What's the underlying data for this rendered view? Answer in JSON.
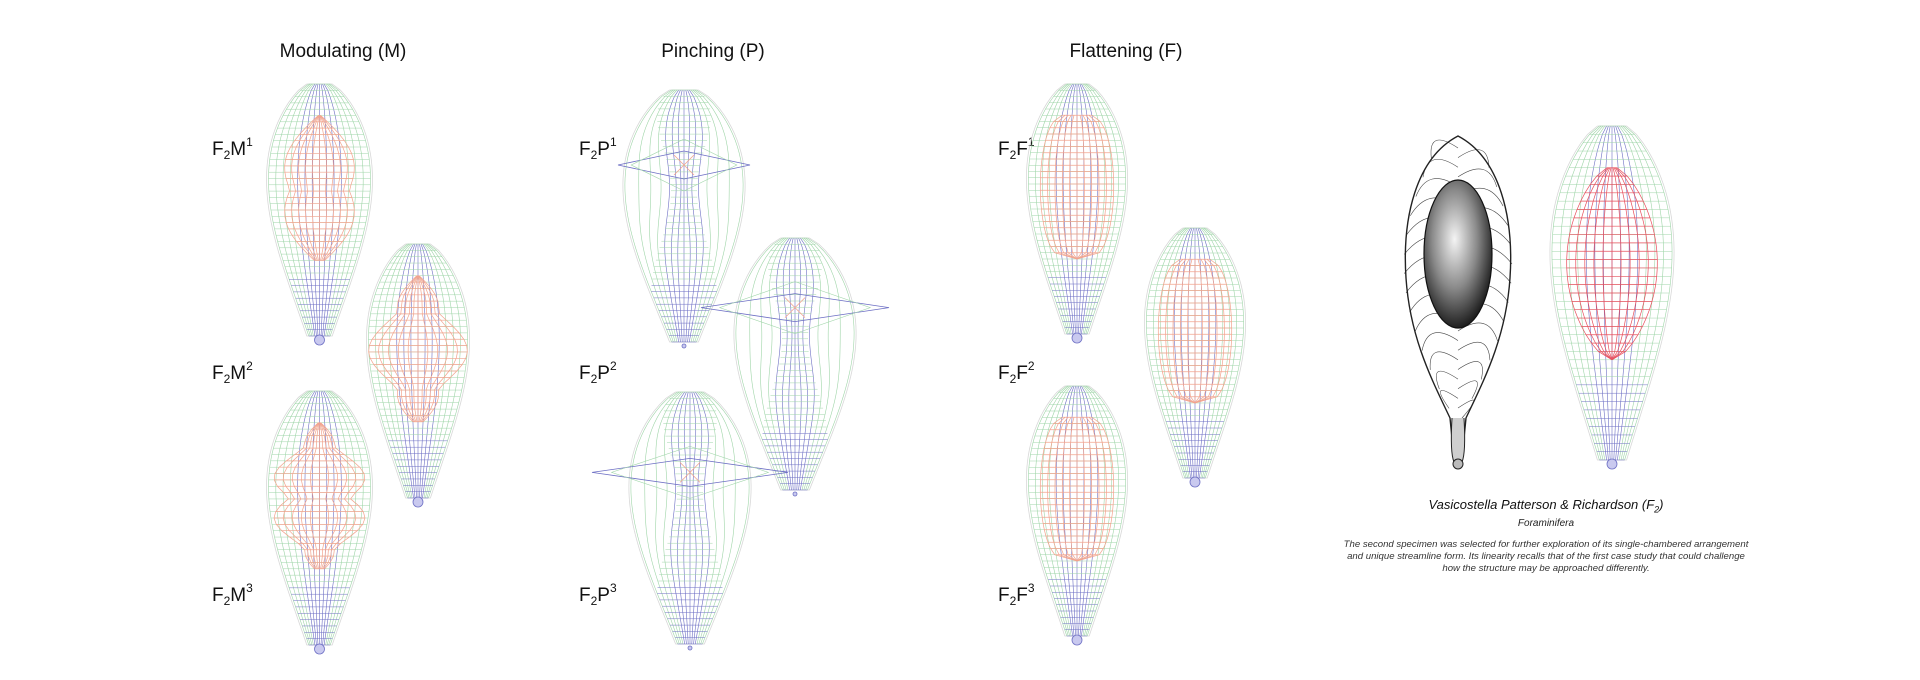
{
  "columns": {
    "modulating": {
      "title": "Modulating (M)",
      "labels": [
        "F",
        "2",
        "M",
        "1",
        "F",
        "2",
        "M",
        "2",
        "F",
        "2",
        "M",
        "3"
      ]
    },
    "pinching": {
      "title": "Pinching (P)"
    },
    "flattening": {
      "title": "Flattening (F)"
    }
  },
  "labels": {
    "m1": {
      "base": "F",
      "sub": "2",
      "letter": "M",
      "sup": "1"
    },
    "m2": {
      "base": "F",
      "sub": "2",
      "letter": "M",
      "sup": "2"
    },
    "m3": {
      "base": "F",
      "sub": "2",
      "letter": "M",
      "sup": "3"
    },
    "p1": {
      "base": "F",
      "sub": "2",
      "letter": "P",
      "sup": "1"
    },
    "p2": {
      "base": "F",
      "sub": "2",
      "letter": "P",
      "sup": "2"
    },
    "p3": {
      "base": "F",
      "sub": "2",
      "letter": "P",
      "sup": "3"
    },
    "f1": {
      "base": "F",
      "sub": "2",
      "letter": "F",
      "sup": "1"
    },
    "f2": {
      "base": "F",
      "sub": "2",
      "letter": "F",
      "sup": "2"
    },
    "f3": {
      "base": "F",
      "sub": "2",
      "letter": "F",
      "sup": "3"
    }
  },
  "caption": {
    "title": "Vasicostella Patterson & Richardson (F",
    "title_sub": "2",
    "title_end": ")",
    "subtitle": "Foraminifera",
    "body": "The second specimen was selected for further exploration of its single-chambered arrangement and unique streamline form. Its linearity recalls that of the first case study that could challenge how the structure may be approached differently."
  },
  "colors": {
    "green": "#9fd5a8",
    "blue": "#6d6fc4",
    "red": "#f2a48e",
    "red_strong": "#e8505e",
    "outline": "#d8d8d8"
  }
}
